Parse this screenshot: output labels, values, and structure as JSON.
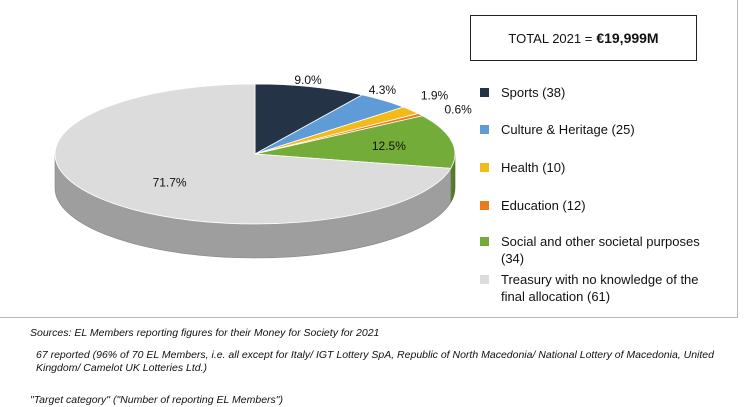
{
  "total_box": {
    "label": "TOTAL 2021 =",
    "value": "€19,999M"
  },
  "chart_data": {
    "type": "pie",
    "title": "",
    "slices": [
      {
        "label": "Sports (38)",
        "value": 9.0,
        "display": "9.0%",
        "color": "#243346"
      },
      {
        "label": "Culture & Heritage (25)",
        "value": 4.3,
        "display": "4.3%",
        "color": "#5f9bd6"
      },
      {
        "label": "Health (10)",
        "value": 1.9,
        "display": "1.9%",
        "color": "#f2bb1a"
      },
      {
        "label": "Education (12)",
        "value": 0.6,
        "display": "0.6%",
        "color": "#ea7a22"
      },
      {
        "label": "Social and other societal purposes (34)",
        "value": 12.5,
        "display": "12.5%",
        "color": "#74ac3a"
      },
      {
        "label": "Treasury with no knowledge of the final allocation (61)",
        "value": 71.7,
        "display": "71.7%",
        "color": "#dcdcdc"
      }
    ],
    "legend_position": "right"
  },
  "notes": {
    "sources": "Sources: EL Members reporting figures for their Money for Society for 2021",
    "reported": "67 reported (96% of 70 EL Members, i.e. all except for Italy/ IGT Lottery SpA, Republic of North Macedonia/ National Lottery of Macedonia, United Kingdom/ Camelot UK Lotteries Ltd.)",
    "key": "\"Target category\" (\"Number of reporting EL Members\")"
  }
}
